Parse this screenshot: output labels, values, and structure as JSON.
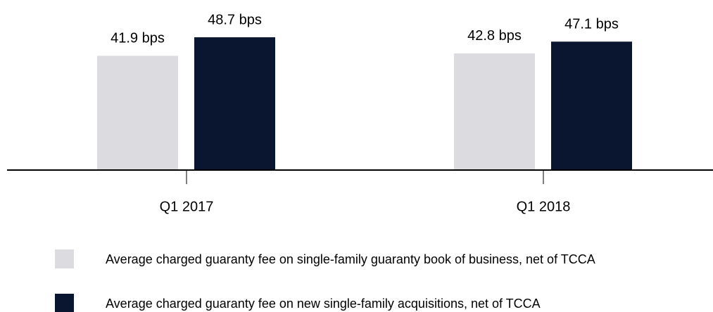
{
  "chart_data": {
    "type": "bar",
    "categories": [
      "Q1 2017",
      "Q1 2018"
    ],
    "series": [
      {
        "name": "Average charged guaranty fee on single-family guaranty book of business, net of TCCA",
        "color": "#dcdbe0",
        "values": [
          41.9,
          42.8
        ],
        "value_labels": [
          "41.9 bps",
          "42.8 bps"
        ]
      },
      {
        "name": "Average charged guaranty fee on new single-family acquisitions, net of TCCA",
        "color": "#0a1530",
        "values": [
          48.7,
          47.1
        ],
        "value_labels": [
          "48.7 bps",
          "47.1 bps"
        ]
      }
    ],
    "legend": "bottom"
  }
}
